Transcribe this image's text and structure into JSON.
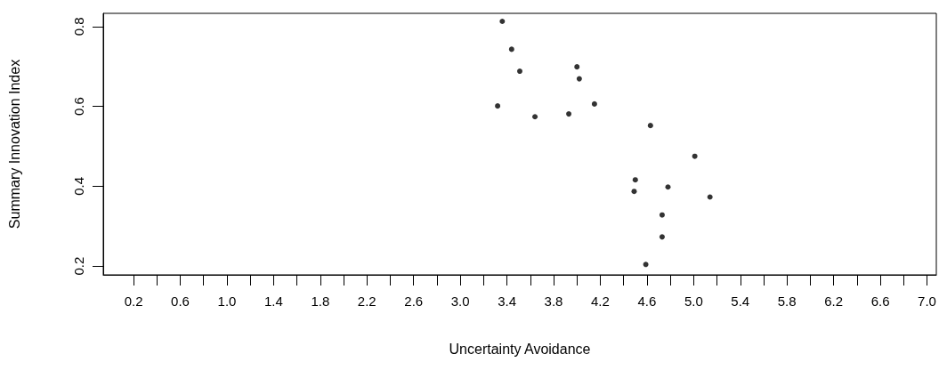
{
  "chart_data": {
    "type": "scatter",
    "xlabel": "Uncertainty Avoidance",
    "ylabel": "Summary Innovation Index",
    "marker": "circle",
    "grid": false,
    "x": [
      3.36,
      3.44,
      3.51,
      3.32,
      3.64,
      3.93,
      4.0,
      4.02,
      4.15,
      4.63,
      5.01,
      4.5,
      4.49,
      4.78,
      5.14,
      4.73,
      4.73,
      4.59
    ],
    "series": [
      {
        "color": "#000000",
        "values": [
          0.813,
          0.743,
          0.688,
          0.601,
          0.574,
          0.581,
          0.699,
          0.669,
          0.606,
          0.552,
          0.475,
          0.416,
          0.387,
          0.398,
          0.373,
          0.328,
          0.273,
          0.204
        ]
      }
    ],
    "xlim": [
      -0.06,
      7.08
    ],
    "ylim": [
      0.178,
      0.833
    ],
    "xticks": [
      0.2,
      {
        "value": 0.4,
        "label": null
      },
      0.6,
      {
        "value": 0.8,
        "label": null
      },
      {
        "value": 1,
        "label": "1.0"
      },
      {
        "value": 1.2,
        "label": null
      },
      1.4,
      {
        "value": 1.6,
        "label": null
      },
      1.8,
      {
        "value": 2,
        "label": null
      },
      2.2,
      {
        "value": 2.4,
        "label": null
      },
      2.6,
      {
        "value": 2.8,
        "label": null
      },
      {
        "value": 3,
        "label": "3.0"
      },
      {
        "value": 3.2,
        "label": null
      },
      3.4,
      {
        "value": 3.6,
        "label": null
      },
      3.8,
      {
        "value": 4,
        "label": null
      },
      4.2,
      {
        "value": 4.4,
        "label": null
      },
      4.6,
      {
        "value": 4.8,
        "label": null
      },
      {
        "value": 5,
        "label": "5.0"
      },
      {
        "value": 5.2,
        "label": null
      },
      5.4,
      {
        "value": 5.6,
        "label": null
      },
      5.8,
      {
        "value": 6,
        "label": null
      },
      6.2,
      {
        "value": 6.4,
        "label": null
      },
      6.6,
      {
        "value": 6.8,
        "label": null
      },
      {
        "value": 7,
        "label": "7.0"
      }
    ],
    "yticks": [
      0.2,
      0.4,
      0.6,
      0.8
    ]
  }
}
